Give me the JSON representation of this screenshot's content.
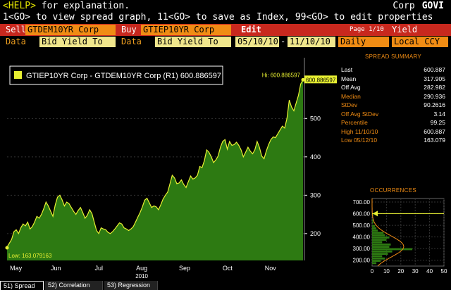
{
  "header": {
    "help_key": "<HELP>",
    "help_text": " for explanation.",
    "asset_class": "Corp",
    "function": "GOVI",
    "line2": "1<GO> to view spread graph, 11<GO> to save as Index, 99<GO> to edit properties"
  },
  "bar1": {
    "sell_label": "Sell",
    "sell_security": "GTDEM10YR Corp",
    "buy_label": "Buy",
    "buy_security": "GTIEP10YR Corp",
    "edit_label": "Edit",
    "page_label": "Page 1/10",
    "title": "Yield Spread"
  },
  "bar2": {
    "data1_label": "Data",
    "data1_value": "Bid Yield To Mat",
    "data2_label": "Data",
    "data2_value": "Bid Yield To Mat",
    "start_date": "05/10/10",
    "date_sep": "-",
    "end_date": "11/10/10",
    "frequency": "Daily",
    "currency": "Local CCY"
  },
  "colors": {
    "accent_orange": "#f08c14",
    "bar_red": "#c8281e",
    "line_yellow": "#e8f032",
    "area_green": "#2d7a12",
    "yellow_field": "#f0e68c"
  },
  "chart_data": {
    "type": "area",
    "legend_text": "GTIEP10YR Corp - GTDEM10YR Corp (R1) 600.886597",
    "hi_label": "Hi: 600.886597",
    "hi_value": 600.886597,
    "last_label": "600.886597",
    "low_label": "Low: 163.079163",
    "low_value": 163.079163,
    "ylim": [
      130,
      640
    ],
    "yticks": [
      200,
      300,
      400,
      500
    ],
    "ytick_labels": [
      "200",
      "300",
      "400",
      "500"
    ],
    "xlabels": [
      "May",
      "Jun",
      "Jul",
      "Aug",
      "Sep",
      "Oct",
      "Nov"
    ],
    "year_label": "2010",
    "values": [
      165,
      175,
      185,
      205,
      210,
      200,
      215,
      225,
      220,
      230,
      212,
      218,
      230,
      245,
      240,
      250,
      265,
      282,
      272,
      258,
      245,
      275,
      295,
      300,
      288,
      272,
      282,
      278,
      268,
      258,
      250,
      260,
      268,
      255,
      240,
      248,
      262,
      252,
      230,
      208,
      200,
      215,
      212,
      210,
      203,
      200,
      205,
      212,
      220,
      228,
      225,
      215,
      212,
      208,
      212,
      218,
      230,
      243,
      255,
      270,
      287,
      292,
      280,
      268,
      272,
      270,
      262,
      275,
      290,
      300,
      308,
      330,
      352,
      345,
      330,
      332,
      340,
      328,
      320,
      335,
      350,
      342,
      345,
      352,
      375,
      372,
      390,
      418,
      412,
      400,
      385,
      392,
      402,
      425,
      440,
      445,
      420,
      440,
      430,
      432,
      438,
      430,
      418,
      400,
      412,
      425,
      415,
      408,
      418,
      440,
      425,
      402,
      395,
      415,
      432,
      445,
      452,
      450,
      460,
      470,
      480,
      475,
      500,
      548,
      530,
      520,
      540,
      560,
      590,
      600.887
    ]
  },
  "summary": {
    "title": "SPREAD SUMMARY",
    "rows": [
      {
        "label": "Last",
        "value": "600.887",
        "color": "#ffffff"
      },
      {
        "label": "Mean",
        "value": "317.905",
        "color": "#ffffff"
      },
      {
        "label": "Off Avg",
        "value": "282.982",
        "color": "#ffffff"
      },
      {
        "label": "Median",
        "value": "290.936",
        "color": "#f08c14"
      },
      {
        "label": "StDev",
        "value": "90.2616",
        "color": "#f08c14"
      },
      {
        "label": "Off Avg StDev",
        "value": "3.14",
        "color": "#f08c14"
      },
      {
        "label": "Percentile",
        "value": "99.25",
        "color": "#f08c14"
      },
      {
        "label": "High 11/10/10",
        "value": "600.887",
        "color": "#f08c14"
      },
      {
        "label": "Low 05/12/10",
        "value": "163.079",
        "color": "#f08c14"
      }
    ]
  },
  "occurrences": {
    "title": "OCCURRENCES",
    "yticks": [
      "700.00",
      "600.00",
      "500.00",
      "400.00",
      "300.00",
      "200.00"
    ],
    "ytick_values": [
      700,
      600,
      500,
      400,
      300,
      200
    ],
    "xticks": [
      "0",
      "10",
      "20",
      "30",
      "40",
      "50"
    ],
    "xtick_values": [
      0,
      10,
      20,
      30,
      40,
      50
    ],
    "ylim": [
      150,
      730
    ],
    "xlim": [
      0,
      50
    ],
    "bins": [
      {
        "y": 175,
        "count": 3
      },
      {
        "y": 195,
        "count": 6
      },
      {
        "y": 215,
        "count": 9
      },
      {
        "y": 235,
        "count": 7
      },
      {
        "y": 255,
        "count": 11
      },
      {
        "y": 275,
        "count": 14
      },
      {
        "y": 295,
        "count": 28
      },
      {
        "y": 315,
        "count": 12
      },
      {
        "y": 335,
        "count": 13
      },
      {
        "y": 355,
        "count": 7
      },
      {
        "y": 375,
        "count": 10
      },
      {
        "y": 395,
        "count": 12
      },
      {
        "y": 415,
        "count": 9
      },
      {
        "y": 435,
        "count": 8
      },
      {
        "y": 455,
        "count": 4
      },
      {
        "y": 475,
        "count": 3
      },
      {
        "y": 495,
        "count": 2
      },
      {
        "y": 525,
        "count": 1
      },
      {
        "y": 545,
        "count": 1
      },
      {
        "y": 590,
        "count": 1
      }
    ],
    "marker_value": 600.887
  },
  "tabs": [
    {
      "label": "51) Spread",
      "active": true
    },
    {
      "label": "52) Correlation",
      "active": false
    },
    {
      "label": "53) Regression",
      "active": false
    }
  ]
}
